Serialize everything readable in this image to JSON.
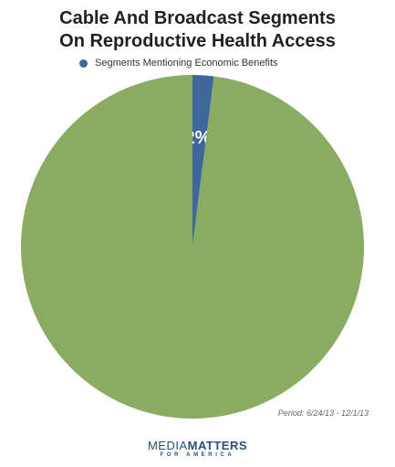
{
  "chart_data": {
    "type": "pie",
    "title_line1": "Cable And Broadcast Segments",
    "title_line2": "On Reproductive Health Access",
    "slices": [
      {
        "name": "Segments Mentioning Economic Benefits",
        "value": 2,
        "label": "2%",
        "color": "#3d6899"
      },
      {
        "name": "",
        "value": 98,
        "label": "",
        "color": "#8aab62"
      }
    ],
    "legend": {
      "position": "top",
      "entries": [
        "Segments Mentioning Economic Benefits"
      ]
    },
    "note": "Period: 6/24/13 - 12/1/13"
  },
  "footer": {
    "logo_part1": "MEDIA",
    "logo_part2": "MATTERS",
    "logo_sub": "FOR AMERICA"
  },
  "colors": {
    "title": "#231f20",
    "logo": "#2a4f7a"
  }
}
